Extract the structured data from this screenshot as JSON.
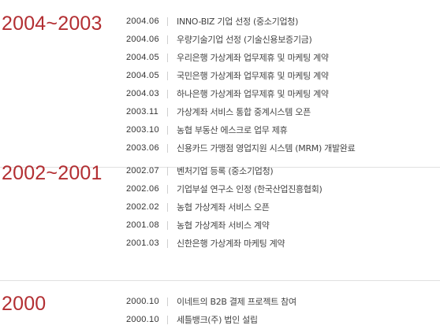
{
  "history": [
    {
      "period": "2004~2003",
      "entries": [
        {
          "date": "2004.06",
          "text": "INNO-BIZ 기업 선정 (중소기업청)"
        },
        {
          "date": "2004.06",
          "text": "우량기술기업 선정 (기술신용보증기금)"
        },
        {
          "date": "2004.05",
          "text": "우리은행 가상계좌 업무제휴 및 마케팅 계약"
        },
        {
          "date": "2004.05",
          "text": "국민은행 가상계좌 업무제휴 및 마케팅 계약"
        },
        {
          "date": "2004.03",
          "text": "하나은행 가상계좌 업무제휴 및 마케팅 계약"
        },
        {
          "date": "2003.11",
          "text": "가상계좌 서비스 통합 중계시스템 오픈"
        },
        {
          "date": "2003.10",
          "text": "농협 부동산 에스크로 업무 제휴"
        },
        {
          "date": "2003.06",
          "text": "신용카드 가맹점 영업지원 시스템 (MRM) 개발완료"
        }
      ]
    },
    {
      "period": "2002~2001",
      "entries": [
        {
          "date": "2002.07",
          "text": "벤처기업 등록 (중소기업청)"
        },
        {
          "date": "2002.06",
          "text": "기업부설 연구소 인정 (한국산업진흥협회)"
        },
        {
          "date": "2002.02",
          "text": "농협 가상계좌 서비스 오픈"
        },
        {
          "date": "2001.08",
          "text": "농협 가상계좌 서비스 계약"
        },
        {
          "date": "2001.03",
          "text": "신한은행 가상계좌 마케팅 계약"
        }
      ]
    },
    {
      "period": "2000",
      "entries": [
        {
          "date": "2000.10",
          "text": "이네트의 B2B 결제 프로젝트 참여"
        },
        {
          "date": "2000.10",
          "text": "세틀뱅크(주) 법인 설립"
        }
      ]
    }
  ],
  "colors": {
    "year": "#b32f33",
    "text": "#444444",
    "divider": "#e0e0e0"
  }
}
